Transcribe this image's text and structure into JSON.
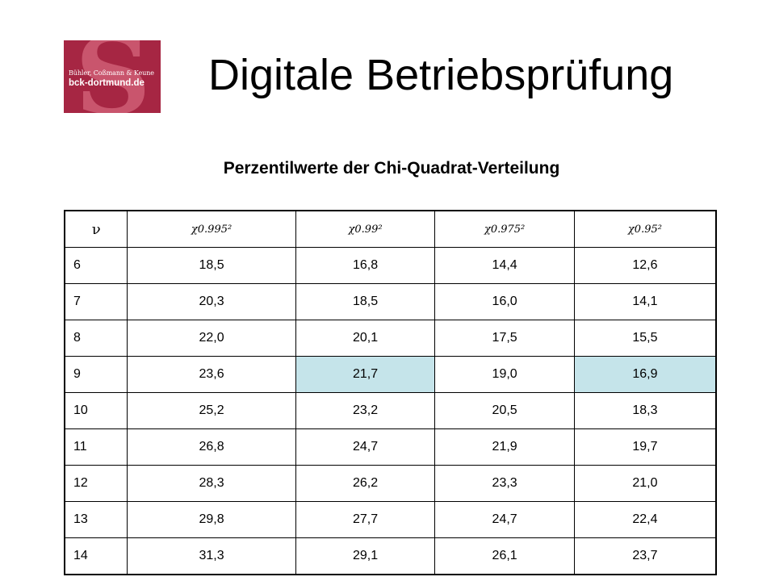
{
  "logo": {
    "line1": "Bühler, Coßmann & Keune",
    "line2": "bck-dortmund.de",
    "letter": "S"
  },
  "title": "Digitale Betriebsprüfung",
  "subtitle": "Perzentilwerte der Chi-Quadrat-Verteilung",
  "table": {
    "headers": [
      "ν",
      "χ0.995²",
      "χ0.99²",
      "χ0.975²",
      "χ0.95²"
    ],
    "rows": [
      [
        "6",
        "18,5",
        "16,8",
        "14,4",
        "12,6"
      ],
      [
        "7",
        "20,3",
        "18,5",
        "16,0",
        "14,1"
      ],
      [
        "8",
        "22,0",
        "20,1",
        "17,5",
        "15,5"
      ],
      [
        "9",
        "23,6",
        "21,7",
        "19,0",
        "16,9"
      ],
      [
        "10",
        "25,2",
        "23,2",
        "20,5",
        "18,3"
      ],
      [
        "11",
        "26,8",
        "24,7",
        "21,9",
        "19,7"
      ],
      [
        "12",
        "28,3",
        "26,2",
        "23,3",
        "21,0"
      ],
      [
        "13",
        "29,8",
        "27,7",
        "24,7",
        "22,4"
      ],
      [
        "14",
        "31,3",
        "29,1",
        "26,1",
        "23,7"
      ]
    ],
    "highlight_color": "#c5e4ea"
  },
  "colors": {
    "logo_bg": "#a62643"
  }
}
